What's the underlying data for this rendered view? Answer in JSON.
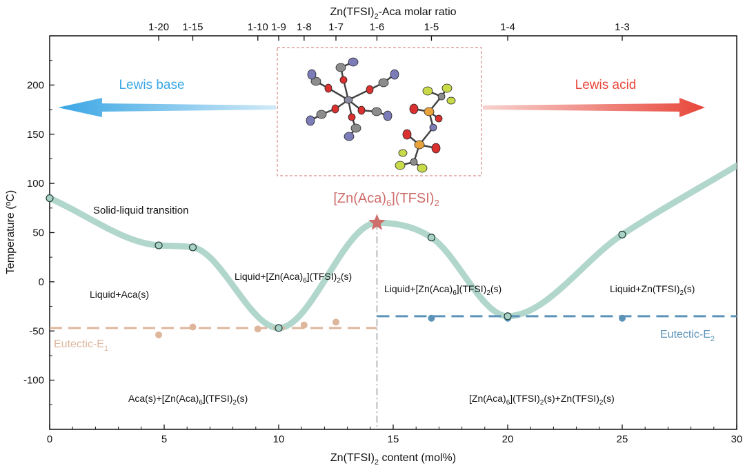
{
  "chart_data": {
    "type": "line",
    "title": "",
    "xlabel": "Zn(TFSI)2 content (mol%)",
    "xlabel_parts": {
      "main": "Zn(TFSI)",
      "sub": "2",
      "rest": " content (mol%)"
    },
    "ylabel": "Temperature (ºC)",
    "top_axis_title": {
      "main": "Zn(TFSI)",
      "sub": "2",
      "rest": "-Aca molar ratio"
    },
    "xlim": [
      0,
      30
    ],
    "ylim": [
      -150,
      250
    ],
    "x_ticks": [
      0,
      5,
      10,
      15,
      20,
      25,
      30
    ],
    "y_ticks": [
      -100,
      -50,
      0,
      50,
      100,
      150,
      200
    ],
    "top_ticks": [
      {
        "label": "1-20",
        "x": 4.76
      },
      {
        "label": "1-15",
        "x": 6.25
      },
      {
        "label": "1-10",
        "x": 9.09
      },
      {
        "label": "1-9",
        "x": 10.0
      },
      {
        "label": "1-8",
        "x": 11.11
      },
      {
        "label": "1-7",
        "x": 12.5
      },
      {
        "label": "1-6",
        "x": 14.29
      },
      {
        "label": "1-5",
        "x": 16.67
      },
      {
        "label": "1-4",
        "x": 20.0
      },
      {
        "label": "1-3",
        "x": 25.0
      }
    ],
    "series": [
      {
        "name": "Solid-liquid transition",
        "style": "smooth-curve",
        "color": "#a9d1c6",
        "points": [
          [
            0,
            85
          ],
          [
            4.76,
            37
          ],
          [
            6.25,
            35
          ],
          [
            10.0,
            -47
          ],
          [
            14.29,
            60
          ],
          [
            16.67,
            45
          ],
          [
            20.0,
            -35
          ],
          [
            25.0,
            48
          ],
          [
            30,
            118
          ]
        ]
      },
      {
        "name": "Eutectic-E1",
        "color": "#ddb69c",
        "line_y": -47,
        "line_x": [
          0,
          14.29
        ],
        "points": [
          [
            4.76,
            -54
          ],
          [
            6.25,
            -46
          ],
          [
            9.09,
            -48
          ],
          [
            11.11,
            -44
          ],
          [
            12.5,
            -41
          ]
        ]
      },
      {
        "name": "Eutectic-E2",
        "color": "#5b93b8",
        "line_y": -35,
        "line_x": [
          14.29,
          30
        ],
        "points": [
          [
            16.67,
            -37
          ],
          [
            20.0,
            -37
          ],
          [
            25.0,
            -37
          ]
        ]
      }
    ],
    "star": {
      "x": 14.29,
      "y": 60,
      "color": "#cd6e6b"
    },
    "compound_label": {
      "p1": "[Zn(Aca)",
      "s1": "6",
      "p2": "](TFSI)",
      "s2": "2"
    },
    "curve_label": "Solid-liquid transition",
    "eutectic_e1_label": {
      "main": "Eutectic-E",
      "sub": "1"
    },
    "eutectic_e2_label": {
      "main": "Eutectic-E",
      "sub": "2"
    },
    "regions": {
      "liquid_aca": "Liquid+Aca(s)",
      "liquid_complex_left": {
        "p1": "Liquid+[Zn(Aca)",
        "s1": "6",
        "p2": "](TFSI)",
        "s2": "2",
        "p3": "(s)"
      },
      "liquid_complex_right": {
        "p1": "Liquid+[Zn(Aca)",
        "s1": "6",
        "p2": "](TFSI)",
        "s2": "2",
        "p3": "(s)"
      },
      "liquid_zn": {
        "p1": "Liquid+Zn(TFSI)",
        "s1": "2",
        "p2": "(s)"
      },
      "aca_complex": {
        "p1": "Aca(s)+[Zn(Aca)",
        "s1": "6",
        "p2": "](TFSI)",
        "s2": "2",
        "p3": "(s)"
      },
      "complex_zn": {
        "p1": "[Zn(Aca)",
        "s1": "6",
        "p2": "](TFSI)",
        "s2": "2",
        "p3": "(s)+Zn(TFSI)",
        "s3": "2",
        "p4": "(s)"
      }
    },
    "arrows": {
      "lewis_base": {
        "label": "Lewis base",
        "color": "#3aa6e4"
      },
      "lewis_acid": {
        "label": "Lewis acid",
        "color": "#e8463a"
      }
    },
    "colors": {
      "curve": "#a9d1c6",
      "curve_marker_fill": "#a9d1c6",
      "marker_edge": "#1f3d35",
      "vline": "#bcbcbc",
      "inset_border": "#d98b87",
      "axis": "#111111"
    }
  }
}
